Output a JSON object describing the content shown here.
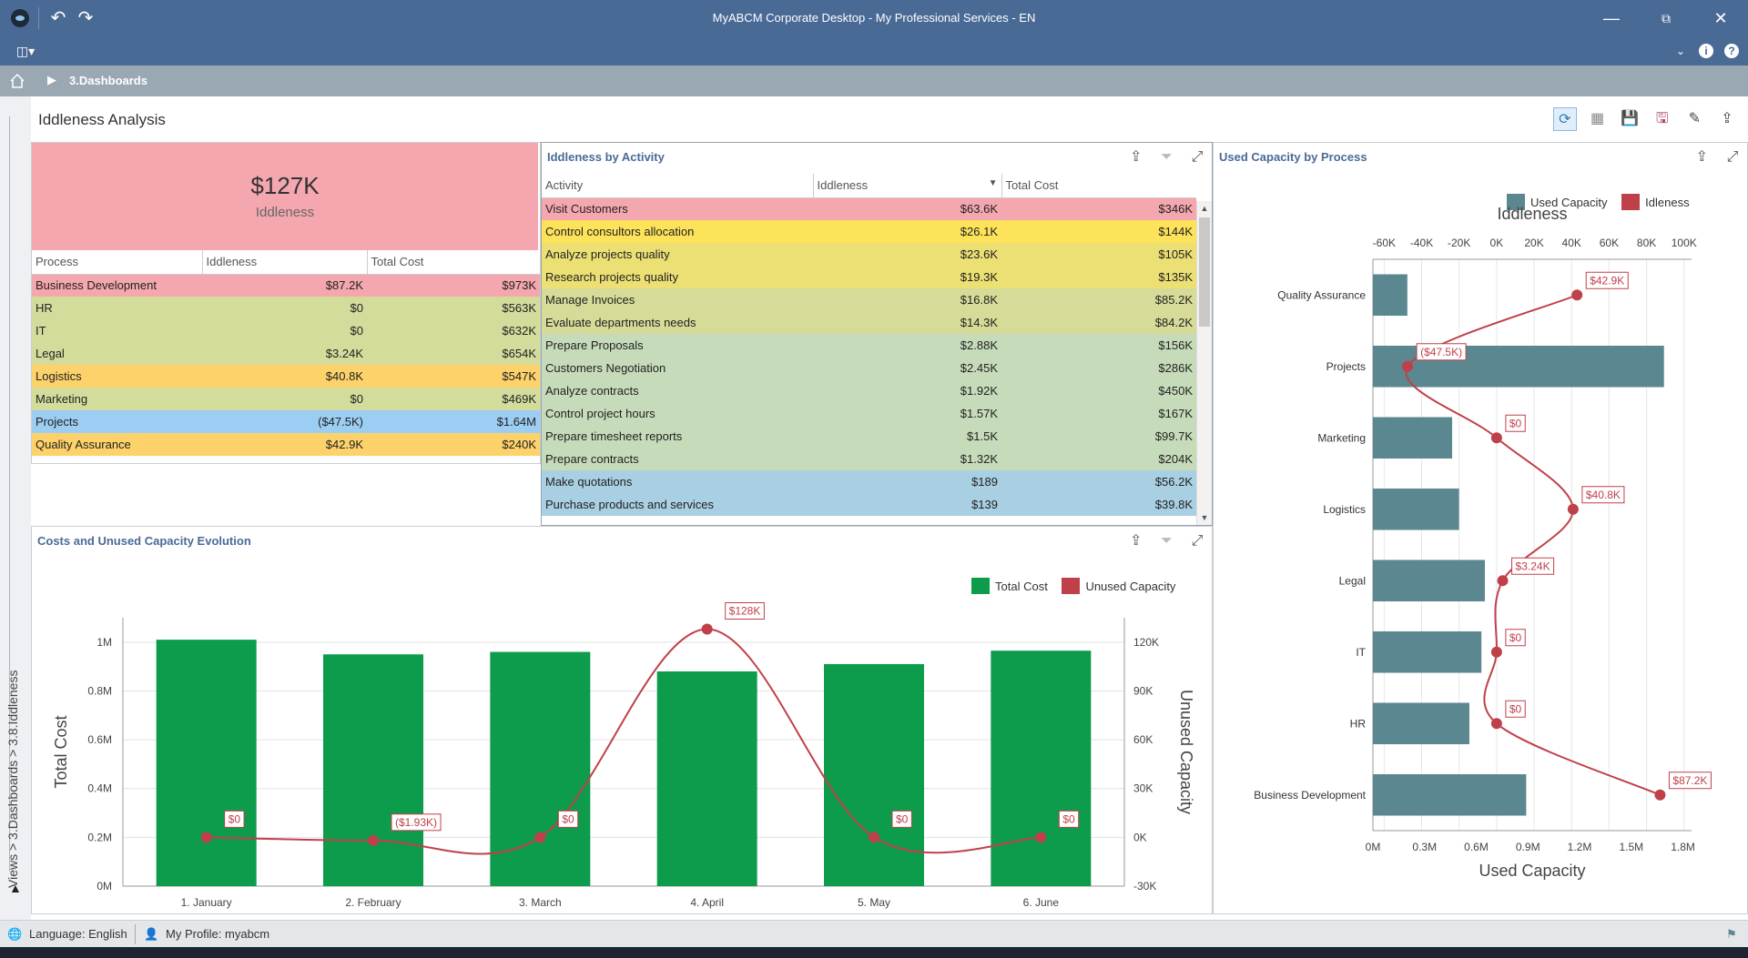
{
  "window": {
    "title": "MyABCM Corporate Desktop - My Professional Services - EN",
    "minimize_icon": "minimize-icon",
    "maximize_icon": "restore-icon",
    "close_icon": "close-icon"
  },
  "breadcrumb": {
    "current": "3.Dashboards"
  },
  "side": {
    "path": "Views > 3.Dashboards > 3.8.Iddleness"
  },
  "dashboard": {
    "title": "Iddleness Analysis"
  },
  "kpi": {
    "value": "$127K",
    "label": "Iddleness"
  },
  "process_table": {
    "headers": [
      "Process",
      "Iddleness",
      "Total Cost"
    ],
    "rows": [
      {
        "name": "Business Development",
        "idd": "$87.2K",
        "cost": "$973K",
        "color": "#f4a7ae"
      },
      {
        "name": "HR",
        "idd": "$0",
        "cost": "$563K",
        "color": "#d4dc9c"
      },
      {
        "name": "IT",
        "idd": "$0",
        "cost": "$632K",
        "color": "#d4dc9c"
      },
      {
        "name": "Legal",
        "idd": "$3.24K",
        "cost": "$654K",
        "color": "#d4dc9c"
      },
      {
        "name": "Logistics",
        "idd": "$40.8K",
        "cost": "$547K",
        "color": "#fdd26a"
      },
      {
        "name": "Marketing",
        "idd": "$0",
        "cost": "$469K",
        "color": "#d4dc9c"
      },
      {
        "name": "Projects",
        "idd": "($47.5K)",
        "cost": "$1.64M",
        "color": "#9ccdf3"
      },
      {
        "name": "Quality Assurance",
        "idd": "$42.9K",
        "cost": "$240K",
        "color": "#fdd26a"
      }
    ]
  },
  "activity_panel": {
    "title": "Iddleness by Activity",
    "headers": [
      "Activity",
      "Iddleness",
      "Total Cost"
    ],
    "rows": [
      {
        "name": "Visit Customers",
        "idd": "$63.6K",
        "cost": "$346K",
        "color": "#f4a7ae"
      },
      {
        "name": "Control consultors allocation",
        "idd": "$26.1K",
        "cost": "$144K",
        "color": "#fde35a"
      },
      {
        "name": "Analyze projects quality",
        "idd": "$23.6K",
        "cost": "$105K",
        "color": "#ecdf73"
      },
      {
        "name": "Research projects quality",
        "idd": "$19.3K",
        "cost": "$135K",
        "color": "#ecdf73"
      },
      {
        "name": "Manage Invoices",
        "idd": "$16.8K",
        "cost": "$85.2K",
        "color": "#d6dc98"
      },
      {
        "name": "Evaluate departments needs",
        "idd": "$14.3K",
        "cost": "$84.2K",
        "color": "#d6dc98"
      },
      {
        "name": "Prepare Proposals",
        "idd": "$2.88K",
        "cost": "$156K",
        "color": "#c6dbb9"
      },
      {
        "name": "Customers Negotiation",
        "idd": "$2.45K",
        "cost": "$286K",
        "color": "#c6dbb9"
      },
      {
        "name": "Analyze contracts",
        "idd": "$1.92K",
        "cost": "$450K",
        "color": "#c6dbb9"
      },
      {
        "name": "Control project hours",
        "idd": "$1.57K",
        "cost": "$167K",
        "color": "#c6dbb9"
      },
      {
        "name": "Prepare timesheet reports",
        "idd": "$1.5K",
        "cost": "$99.7K",
        "color": "#c6dbb9"
      },
      {
        "name": "Prepare contracts",
        "idd": "$1.32K",
        "cost": "$204K",
        "color": "#c6dbb9"
      },
      {
        "name": "Make quotations",
        "idd": "$189",
        "cost": "$56.2K",
        "color": "#a9cfe2"
      },
      {
        "name": "Purchase products and services",
        "idd": "$139",
        "cost": "$39.8K",
        "color": "#a9cfe2"
      }
    ]
  },
  "costs_panel": {
    "title": "Costs and Unused Capacity Evolution"
  },
  "process_panel": {
    "title": "Used Capacity by Process"
  },
  "status": {
    "language": "Language: English",
    "profile": "My Profile: myabcm"
  },
  "chart_data": [
    {
      "type": "bar",
      "title": "",
      "categories": [
        "1. January",
        "2. February",
        "3. March",
        "4. April",
        "5. May",
        "6. June"
      ],
      "series": [
        {
          "name": "Total Cost",
          "type": "bar",
          "axis": "left",
          "color": "#0d9b4c",
          "values": [
            1010000,
            950000,
            960000,
            880000,
            910000,
            965000
          ]
        },
        {
          "name": "Unused Capacity",
          "type": "line",
          "axis": "right",
          "color": "#c0404a",
          "values": [
            0,
            -1930,
            0,
            128000,
            0,
            0
          ],
          "labels": [
            "$0",
            "($1.93K)",
            "$0",
            "$128K",
            "$0",
            "$0"
          ]
        }
      ],
      "ylabel": "Total Cost",
      "y2label": "Unused Capacity",
      "ylim": [
        0,
        1100000
      ],
      "yticks": [
        "0M",
        "0.2M",
        "0.4M",
        "0.6M",
        "0.8M",
        "1M"
      ],
      "y2lim": [
        -30000,
        135000
      ],
      "y2ticks": [
        "-30K",
        "0K",
        "30K",
        "60K",
        "90K",
        "120K"
      ],
      "legend": "top-right",
      "grid": true
    },
    {
      "type": "bar",
      "orientation": "horizontal",
      "title": "Iddleness",
      "categories": [
        "Quality Assurance",
        "Projects",
        "Marketing",
        "Logistics",
        "Legal",
        "IT",
        "HR",
        "Business Development"
      ],
      "series": [
        {
          "name": "Used Capacity",
          "type": "bar",
          "axis": "bottom",
          "color": "#5b8790",
          "values": [
            200000,
            1690000,
            460000,
            500000,
            650000,
            630000,
            560000,
            890000
          ]
        },
        {
          "name": "Idleness",
          "type": "line",
          "axis": "top",
          "color": "#c0404a",
          "values": [
            42900,
            -47500,
            0,
            40800,
            3240,
            0,
            0,
            87200
          ],
          "labels": [
            "$42.9K",
            "($47.5K)",
            "$0",
            "$40.8K",
            "$3.24K",
            "$0",
            "$0",
            "$87.2K"
          ]
        }
      ],
      "xlabel": "Used Capacity",
      "xlim": [
        0,
        1850000
      ],
      "xticks": [
        "0M",
        "0.3M",
        "0.6M",
        "0.9M",
        "1.2M",
        "1.5M",
        "1.8M"
      ],
      "x2label": "Iddleness",
      "x2lim": [
        -66000,
        104000
      ],
      "x2ticks": [
        "-60K",
        "-40K",
        "-20K",
        "0K",
        "20K",
        "40K",
        "60K",
        "80K",
        "100K"
      ],
      "legend": "top-right",
      "grid": true
    }
  ]
}
